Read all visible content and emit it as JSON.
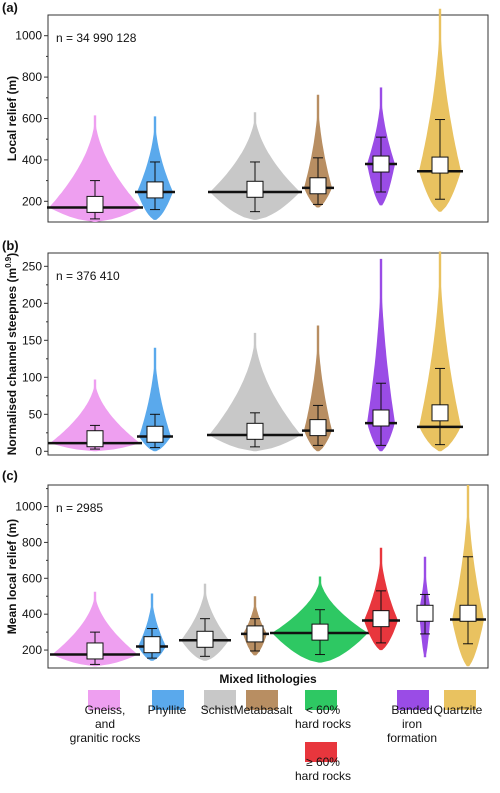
{
  "colors": {
    "gneiss": "#ee9ff0",
    "phyllite": "#5aa9ec",
    "schist": "#c8c8c8",
    "metabasalt": "#b88e62",
    "mixed_low": "#2ec863",
    "mixed_high": "#e8363d",
    "bif": "#9a4ce6",
    "quartzite": "#e9c260"
  },
  "chart_data": [
    {
      "type": "violin",
      "panel": "(a)",
      "annotation": "n = 34 990 128",
      "ylabel": "Local relief (m)",
      "yticks": [
        200,
        400,
        600,
        800,
        1000
      ],
      "ylim": [
        100,
        1100
      ],
      "categories": [
        "Gneiss, and granitic rocks",
        "Phyllite",
        "Schist",
        "Metabasalt",
        "Banded iron formation",
        "Quartzite"
      ],
      "series": [
        {
          "key": "gneiss",
          "median": 170,
          "mean": 185,
          "whisker_low": 115,
          "whisker_high": 300,
          "min": 100,
          "max": 615
        },
        {
          "key": "phyllite",
          "median": 245,
          "mean": 255,
          "whisker_low": 160,
          "whisker_high": 390,
          "min": 110,
          "max": 610
        },
        {
          "key": "schist",
          "median": 245,
          "mean": 258,
          "whisker_low": 150,
          "whisker_high": 390,
          "min": 110,
          "max": 630
        },
        {
          "key": "metabasalt",
          "median": 265,
          "mean": 275,
          "whisker_low": 185,
          "whisker_high": 410,
          "min": 170,
          "max": 715
        },
        {
          "key": "bif",
          "median": 380,
          "mean": 380,
          "whisker_low": 245,
          "whisker_high": 510,
          "min": 180,
          "max": 750
        },
        {
          "key": "quartzite",
          "median": 345,
          "mean": 375,
          "whisker_low": 210,
          "whisker_high": 595,
          "min": 150,
          "max": 1130
        }
      ]
    },
    {
      "type": "violin",
      "panel": "(b)",
      "annotation": "n = 376 410",
      "ylabel": "Normalised channel steepnes (m",
      "ylabel_sup": "0.9",
      "ylabel_end": ")",
      "yticks": [
        0,
        50,
        100,
        150,
        200,
        250
      ],
      "ylim": [
        -5,
        268
      ],
      "categories": [
        "Gneiss, and granitic rocks",
        "Phyllite",
        "Schist",
        "Metabasalt",
        "Banded iron formation",
        "Quartzite"
      ],
      "series": [
        {
          "key": "gneiss",
          "median": 11,
          "mean": 17,
          "whisker_low": 3,
          "whisker_high": 35,
          "min": 0,
          "max": 97
        },
        {
          "key": "phyllite",
          "median": 20,
          "mean": 23,
          "whisker_low": 5,
          "whisker_high": 50,
          "min": 0,
          "max": 140
        },
        {
          "key": "schist",
          "median": 22,
          "mean": 27,
          "whisker_low": 6,
          "whisker_high": 52,
          "min": 0,
          "max": 160
        },
        {
          "key": "metabasalt",
          "median": 28,
          "mean": 32,
          "whisker_low": 8,
          "whisker_high": 62,
          "min": 0,
          "max": 170
        },
        {
          "key": "bif",
          "median": 38,
          "mean": 45,
          "whisker_low": 8,
          "whisker_high": 92,
          "min": 0,
          "max": 260
        },
        {
          "key": "quartzite",
          "median": 33,
          "mean": 52,
          "whisker_low": 9,
          "whisker_high": 112,
          "min": 0,
          "max": 270
        }
      ]
    },
    {
      "type": "violin",
      "panel": "(c)",
      "annotation": "n = 2985",
      "ylabel": "Mean local relief (m)",
      "yticks": [
        200,
        400,
        600,
        800,
        1000
      ],
      "ylim": [
        100,
        1120
      ],
      "xlabel": "Mixed lithologies",
      "categories": [
        "Gneiss, and granitic rocks",
        "Phyllite",
        "Schist",
        "Metabasalt",
        "< 60% hard rocks",
        "≥ 60% hard rocks",
        "Banded iron formation",
        "Quartzite"
      ],
      "series": [
        {
          "key": "gneiss",
          "median": 175,
          "mean": 195,
          "whisker_low": 120,
          "whisker_high": 300,
          "min": 110,
          "max": 525
        },
        {
          "key": "phyllite",
          "median": 220,
          "mean": 230,
          "whisker_low": 155,
          "whisker_high": 320,
          "min": 140,
          "max": 515
        },
        {
          "key": "schist",
          "median": 255,
          "mean": 260,
          "whisker_low": 165,
          "whisker_high": 375,
          "min": 140,
          "max": 570
        },
        {
          "key": "metabasalt",
          "median": 290,
          "mean": 290,
          "whisker_low": 195,
          "whisker_high": 375,
          "min": 170,
          "max": 500
        },
        {
          "key": "mixed_low",
          "median": 295,
          "mean": 300,
          "whisker_low": 175,
          "whisker_high": 425,
          "min": 130,
          "max": 610
        },
        {
          "key": "mixed_high",
          "median": 365,
          "mean": 375,
          "whisker_low": 240,
          "whisker_high": 530,
          "min": 200,
          "max": 770
        },
        {
          "key": "bif",
          "median": 420,
          "mean": 405,
          "whisker_low": 290,
          "whisker_high": 510,
          "min": 160,
          "max": 720
        },
        {
          "key": "quartzite",
          "median": 370,
          "mean": 405,
          "whisker_low": 235,
          "whisker_high": 720,
          "min": 110,
          "max": 1120
        }
      ]
    }
  ],
  "legend": {
    "title": "Mixed lithologies",
    "items": [
      {
        "key": "gneiss",
        "lines": [
          "Gneiss,",
          "and",
          "granitic rocks"
        ]
      },
      {
        "key": "phyllite",
        "lines": [
          "Phyllite"
        ]
      },
      {
        "key": "schist",
        "lines": [
          "Schist"
        ]
      },
      {
        "key": "metabasalt",
        "lines": [
          "Metabasalt"
        ]
      },
      {
        "key": "mixed_low",
        "lines": [
          "< 60%",
          "hard rocks"
        ]
      },
      {
        "key": "mixed_high",
        "lines": [
          "≥ 60%",
          "hard rocks"
        ]
      },
      {
        "key": "bif",
        "lines": [
          "Banded",
          "iron",
          "formation"
        ]
      },
      {
        "key": "quartzite",
        "lines": [
          "Quartzite"
        ]
      }
    ]
  }
}
